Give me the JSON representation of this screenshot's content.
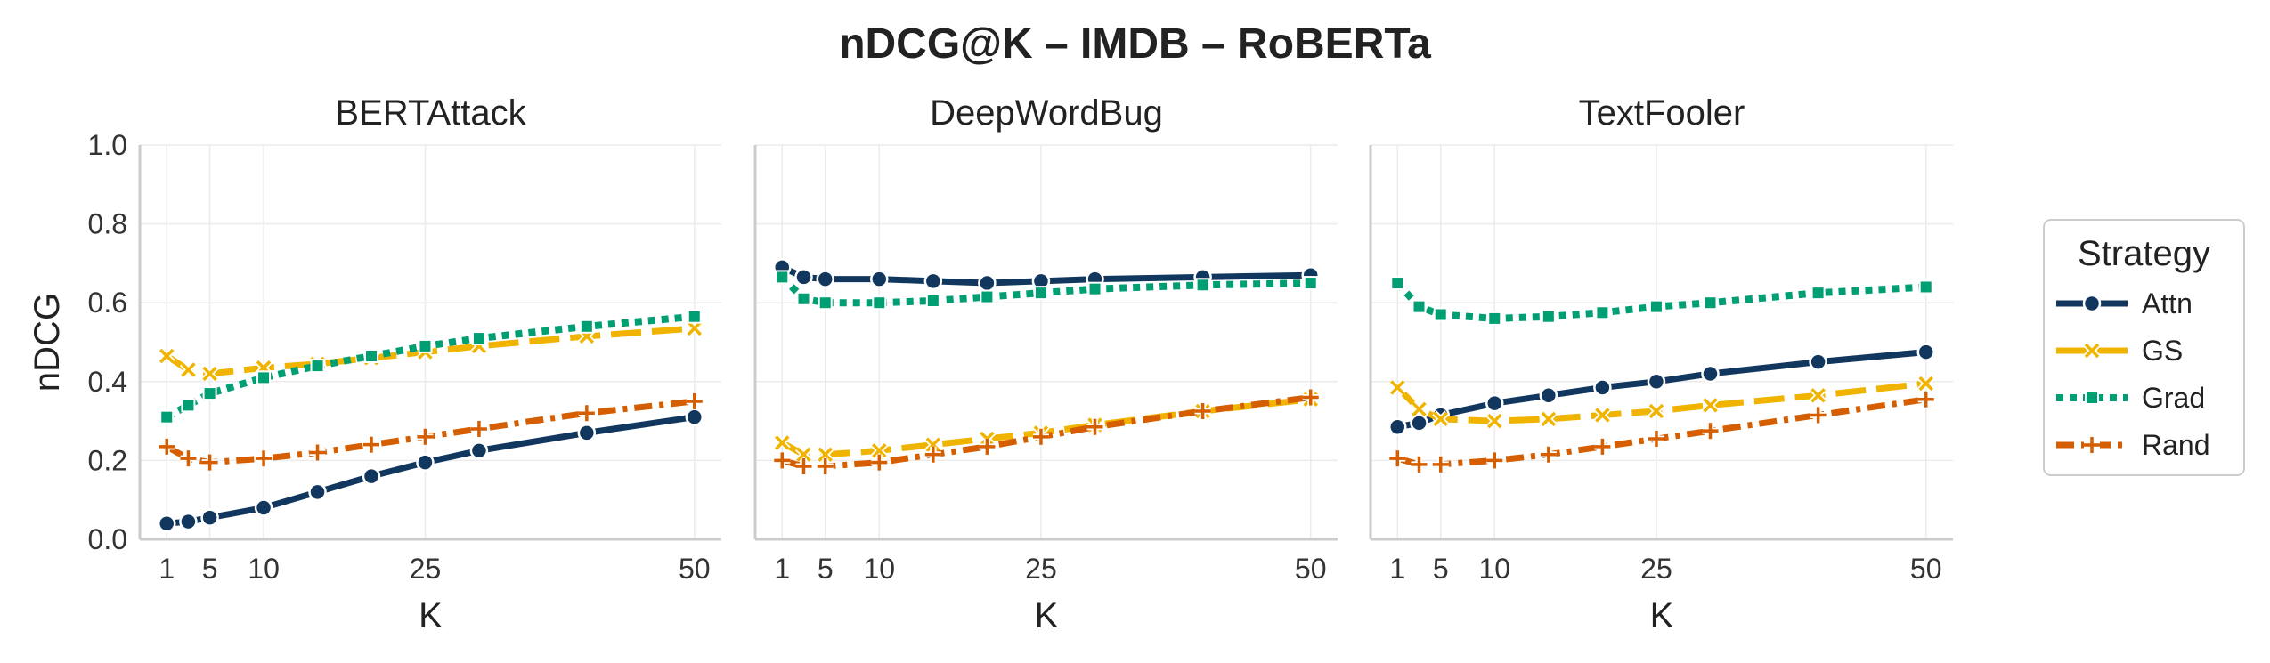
{
  "figure": {
    "title": "nDCG@K – IMDB – RoBERTa"
  },
  "chart_data": [
    {
      "type": "line",
      "title": "BERTAttack",
      "xlabel": "K",
      "ylabel": "nDCG",
      "xticks": [
        1,
        5,
        10,
        25,
        50
      ],
      "yticks": [
        "0.0",
        "0.2",
        "0.4",
        "0.6",
        "0.8",
        "1.0"
      ],
      "xlim": [
        -1.5,
        52.5
      ],
      "ylim": [
        0,
        1
      ],
      "grid": true,
      "x": [
        1,
        3,
        5,
        10,
        15,
        20,
        25,
        30,
        40,
        50
      ],
      "series": [
        {
          "name": "Attn",
          "values": [
            0.04,
            0.045,
            0.055,
            0.08,
            0.12,
            0.16,
            0.195,
            0.225,
            0.27,
            0.31
          ]
        },
        {
          "name": "GS",
          "values": [
            0.465,
            0.43,
            0.42,
            0.435,
            0.445,
            0.46,
            0.475,
            0.49,
            0.515,
            0.535
          ]
        },
        {
          "name": "Grad",
          "values": [
            0.31,
            0.34,
            0.37,
            0.41,
            0.44,
            0.465,
            0.49,
            0.51,
            0.54,
            0.565
          ]
        },
        {
          "name": "Rand",
          "values": [
            0.235,
            0.205,
            0.195,
            0.205,
            0.22,
            0.24,
            0.26,
            0.28,
            0.32,
            0.35
          ]
        }
      ]
    },
    {
      "type": "line",
      "title": "DeepWordBug",
      "xlabel": "K",
      "ylabel": "",
      "xticks": [
        1,
        5,
        10,
        25,
        50
      ],
      "yticks": [
        "0.0",
        "0.2",
        "0.4",
        "0.6",
        "0.8",
        "1.0"
      ],
      "xlim": [
        -1.5,
        52.5
      ],
      "ylim": [
        0,
        1
      ],
      "grid": true,
      "x": [
        1,
        3,
        5,
        10,
        15,
        20,
        25,
        30,
        40,
        50
      ],
      "series": [
        {
          "name": "Attn",
          "values": [
            0.69,
            0.665,
            0.66,
            0.66,
            0.655,
            0.65,
            0.655,
            0.66,
            0.665,
            0.67
          ]
        },
        {
          "name": "GS",
          "values": [
            0.245,
            0.215,
            0.215,
            0.225,
            0.24,
            0.255,
            0.27,
            0.29,
            0.325,
            0.355
          ]
        },
        {
          "name": "Grad",
          "values": [
            0.665,
            0.61,
            0.6,
            0.6,
            0.605,
            0.615,
            0.625,
            0.635,
            0.645,
            0.65
          ]
        },
        {
          "name": "Rand",
          "values": [
            0.2,
            0.185,
            0.185,
            0.195,
            0.215,
            0.235,
            0.26,
            0.285,
            0.325,
            0.36
          ]
        }
      ]
    },
    {
      "type": "line",
      "title": "TextFooler",
      "xlabel": "K",
      "ylabel": "",
      "xticks": [
        1,
        5,
        10,
        25,
        50
      ],
      "yticks": [
        "0.0",
        "0.2",
        "0.4",
        "0.6",
        "0.8",
        "1.0"
      ],
      "xlim": [
        -1.5,
        52.5
      ],
      "ylim": [
        0,
        1
      ],
      "grid": true,
      "x": [
        1,
        3,
        5,
        10,
        15,
        20,
        25,
        30,
        40,
        50
      ],
      "series": [
        {
          "name": "Attn",
          "values": [
            0.285,
            0.295,
            0.315,
            0.345,
            0.365,
            0.385,
            0.4,
            0.42,
            0.45,
            0.475
          ]
        },
        {
          "name": "GS",
          "values": [
            0.385,
            0.33,
            0.305,
            0.3,
            0.305,
            0.315,
            0.325,
            0.34,
            0.365,
            0.395
          ]
        },
        {
          "name": "Grad",
          "values": [
            0.65,
            0.59,
            0.57,
            0.56,
            0.565,
            0.575,
            0.59,
            0.6,
            0.625,
            0.64
          ]
        },
        {
          "name": "Rand",
          "values": [
            0.205,
            0.19,
            0.19,
            0.2,
            0.215,
            0.235,
            0.255,
            0.275,
            0.315,
            0.355
          ]
        }
      ]
    }
  ],
  "legend": {
    "title": "Strategy",
    "placement": "right",
    "items": [
      {
        "name": "Attn",
        "color": "#12375e",
        "dash": "solid",
        "marker": "circle"
      },
      {
        "name": "GS",
        "color": "#f0b400",
        "dash": "dashed",
        "marker": "x"
      },
      {
        "name": "Grad",
        "color": "#009e73",
        "dash": "dotted",
        "marker": "square"
      },
      {
        "name": "Rand",
        "color": "#d55e00",
        "dash": "dashdot",
        "marker": "plus"
      }
    ]
  }
}
